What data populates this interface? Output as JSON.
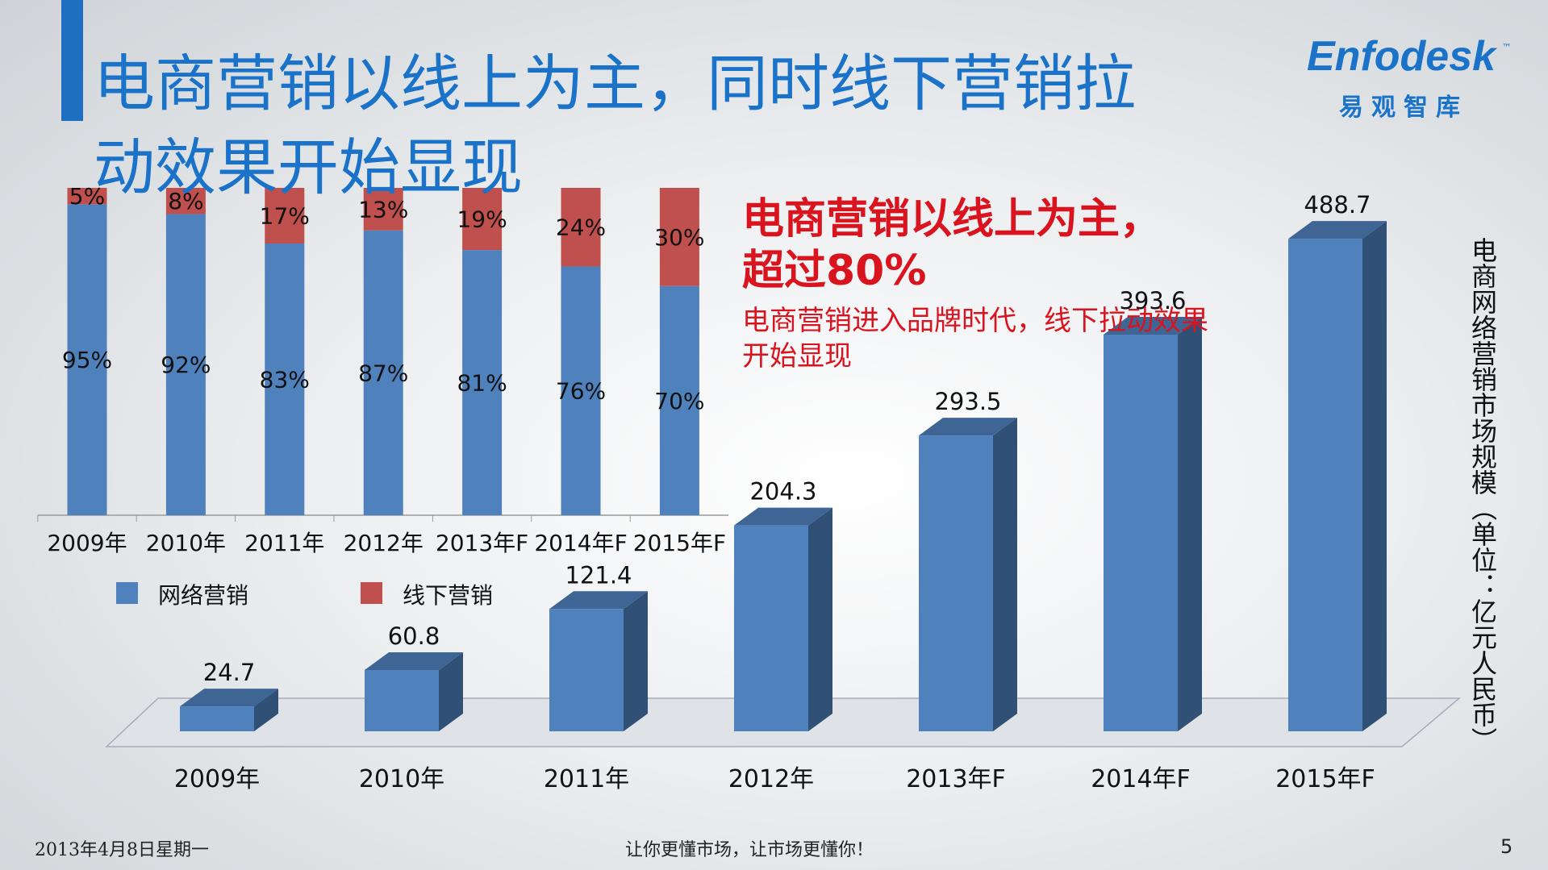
{
  "header": {
    "title": "电商营销以线上为主，同时线下营销拉动效果开始显现",
    "logo": "Enfodesk",
    "logo_sub": "易观智库",
    "logo_tm": "™"
  },
  "chart_data": [
    {
      "type": "stacked-bar",
      "categories": [
        "2009年",
        "2010年",
        "2011年",
        "2012年",
        "2013年F",
        "2014年F",
        "2015年F"
      ],
      "series": [
        {
          "name": "网络营销",
          "color": "#4f81bd",
          "values": [
            95,
            92,
            83,
            87,
            81,
            76,
            70
          ],
          "value_labels": [
            "95%",
            "92%",
            "83%",
            "87%",
            "81%",
            "76%",
            "70%"
          ]
        },
        {
          "name": "线下营销",
          "color": "#c0504d",
          "values": [
            5,
            8,
            17,
            13,
            19,
            24,
            30
          ],
          "value_labels": [
            "5%",
            "8%",
            "17%",
            "13%",
            "19%",
            "24%",
            "30%"
          ]
        }
      ]
    },
    {
      "type": "bar3d",
      "categories": [
        "2009年",
        "2010年",
        "2011年",
        "2012年",
        "2013年F",
        "2014年F",
        "2015年F"
      ],
      "values": [
        24.7,
        60.8,
        121.4,
        204.3,
        293.5,
        393.6,
        488.7
      ],
      "color": "#4f81bd",
      "y_label": "电商网络营销市场规模（单位：亿元人民币）",
      "annotations": [
        "电商营销以线上为主，超过80%",
        "电商营销进入品牌时代，线下拉动效果开始显现"
      ]
    }
  ],
  "footer": {
    "date": "2013年4月8日星期一",
    "slogan": "让你更懂市场，让市场更懂你！",
    "page": "5"
  }
}
